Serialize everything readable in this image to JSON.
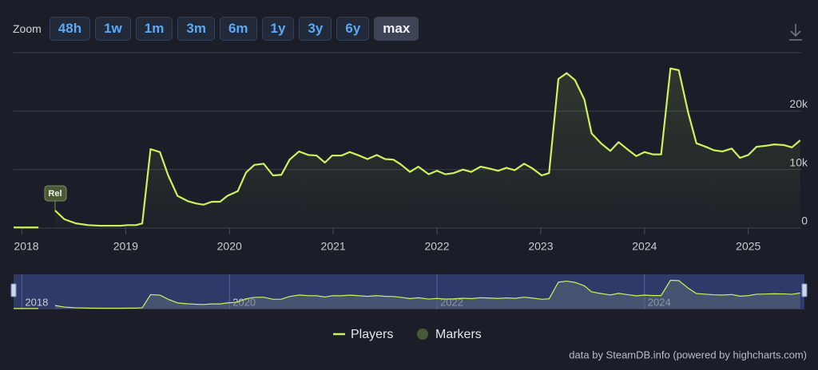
{
  "zoom": {
    "label": "Zoom",
    "buttons": [
      "48h",
      "1w",
      "1m",
      "3m",
      "6m",
      "1y",
      "3y",
      "6y",
      "max"
    ],
    "selected": 8
  },
  "chart_data": {
    "type": "line",
    "x": [
      2017.92,
      2018.16,
      2018.24,
      2018.32,
      2018.41,
      2018.52,
      2018.64,
      2018.75,
      2018.87,
      2018.95,
      2019.02,
      2019.1,
      2019.16,
      2019.24,
      2019.33,
      2019.41,
      2019.5,
      2019.6,
      2019.68,
      2019.75,
      2019.83,
      2019.91,
      2019.98,
      2020.08,
      2020.16,
      2020.24,
      2020.33,
      2020.42,
      2020.5,
      2020.58,
      2020.67,
      2020.76,
      2020.84,
      2020.92,
      2020.99,
      2021.08,
      2021.16,
      2021.25,
      2021.33,
      2021.42,
      2021.5,
      2021.58,
      2021.65,
      2021.74,
      2021.82,
      2021.92,
      2022.0,
      2022.08,
      2022.16,
      2022.25,
      2022.33,
      2022.42,
      2022.5,
      2022.59,
      2022.67,
      2022.75,
      2022.84,
      2022.92,
      2023.01,
      2023.08,
      2023.17,
      2023.25,
      2023.33,
      2023.42,
      2023.49,
      2023.58,
      2023.67,
      2023.75,
      2023.84,
      2023.92,
      2024.0,
      2024.08,
      2024.16,
      2024.25,
      2024.33,
      2024.42,
      2024.5,
      2024.59,
      2024.67,
      2024.75,
      2024.84,
      2024.92,
      2025.0,
      2025.08,
      2025.18,
      2025.25,
      2025.34,
      2025.42,
      2025.5
    ],
    "series": [
      {
        "name": "Players",
        "color": "#cdf25c",
        "values": [
          100,
          100,
          null,
          3000,
          1500,
          800,
          500,
          400,
          400,
          400,
          500,
          500,
          800,
          13500,
          13000,
          9000,
          5500,
          4600,
          4200,
          4000,
          4500,
          4500,
          5500,
          6300,
          9500,
          10800,
          11000,
          9000,
          9100,
          11700,
          13100,
          12500,
          12400,
          11200,
          12400,
          12400,
          13000,
          12400,
          11800,
          12500,
          11800,
          11700,
          10900,
          9600,
          10500,
          9200,
          9800,
          9200,
          9400,
          10000,
          9600,
          10500,
          10200,
          9800,
          10300,
          9900,
          11000,
          10200,
          9000,
          9400,
          25500,
          26500,
          25300,
          22000,
          16200,
          14500,
          13200,
          14700,
          13400,
          12300,
          13000,
          12600,
          12600,
          27300,
          27000,
          19800,
          14500,
          13900,
          13300,
          13100,
          13600,
          12000,
          12500,
          13900,
          14100,
          14300,
          14200,
          13800,
          15000
        ]
      }
    ],
    "annotations": [
      {
        "label": "Rel",
        "x": 2018.32,
        "y": 3000
      }
    ],
    "annotation_legend": "Markers",
    "annotation_color": "#4a5a38",
    "xlim": [
      2017.92,
      2025.51
    ],
    "xticks": [
      2018,
      2019,
      2020,
      2021,
      2022,
      2023,
      2024,
      2025
    ],
    "ylim": [
      0,
      30000
    ],
    "yticks": [
      0,
      {
        "value": 10000,
        "label": "10k"
      },
      {
        "value": 20000,
        "label": "20k"
      }
    ],
    "navigator_xticks": [
      2018,
      2020,
      2022,
      2024
    ],
    "grid": true
  },
  "credits": "data by SteamDB.info (powered by highcharts.com)"
}
